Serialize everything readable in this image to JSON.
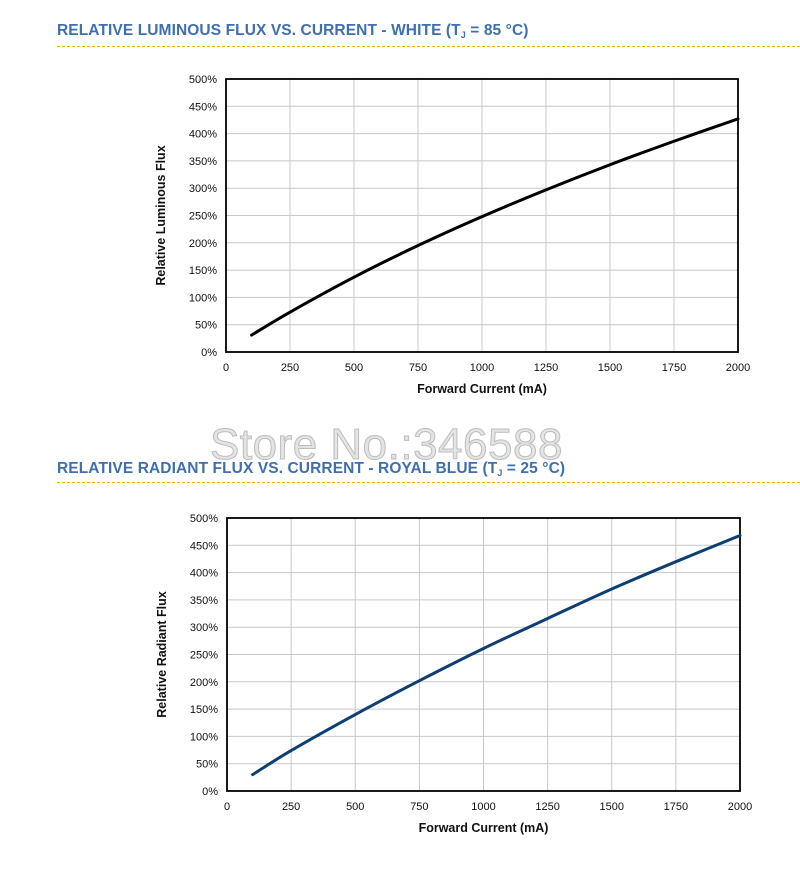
{
  "watermark": "Store No.:346588",
  "chart_data": [
    {
      "type": "line",
      "title_main": "RELATIVE LUMINOUS FLUX VS. CURRENT - WHITE (T",
      "title_sub": "J",
      "title_tail": " = 85 °C)",
      "xlabel": "Forward Current (mA)",
      "ylabel": "Relative Luminous Flux",
      "xlim": [
        0,
        2000
      ],
      "ylim": [
        0,
        500
      ],
      "xticks": [
        0,
        250,
        500,
        750,
        1000,
        1250,
        1500,
        1750,
        2000
      ],
      "xtick_labels": [
        "0",
        "250",
        "500",
        "750",
        "1000",
        "1250",
        "1500",
        "1750",
        "2000"
      ],
      "yticks": [
        0,
        50,
        100,
        150,
        200,
        250,
        300,
        350,
        400,
        450,
        500
      ],
      "ytick_labels": [
        "0%",
        "50%",
        "100%",
        "150%",
        "200%",
        "250%",
        "300%",
        "350%",
        "400%",
        "450%",
        "500%"
      ],
      "grid": true,
      "line_color": "#000000",
      "series": [
        {
          "x": [
            100,
            250,
            500,
            750,
            1000,
            1250,
            1500,
            1750,
            2000
          ],
          "y": [
            31,
            73,
            137,
            195,
            248,
            297,
            343,
            386,
            427
          ]
        }
      ]
    },
    {
      "type": "line",
      "title_main": "RELATIVE RADIANT FLUX VS. CURRENT - ROYAL BLUE (T",
      "title_sub": "J",
      "title_tail": " = 25 °C)",
      "xlabel": "Forward Current (mA)",
      "ylabel": "Relative Radiant Flux",
      "xlim": [
        0,
        2000
      ],
      "ylim": [
        0,
        500
      ],
      "xticks": [
        0,
        250,
        500,
        750,
        1000,
        1250,
        1500,
        1750,
        2000
      ],
      "xtick_labels": [
        "0",
        "250",
        "500",
        "750",
        "1000",
        "1250",
        "1500",
        "1750",
        "2000"
      ],
      "yticks": [
        0,
        50,
        100,
        150,
        200,
        250,
        300,
        350,
        400,
        450,
        500
      ],
      "ytick_labels": [
        "0%",
        "50%",
        "100%",
        "150%",
        "200%",
        "250%",
        "300%",
        "350%",
        "400%",
        "450%",
        "500%"
      ],
      "grid": true,
      "line_color": "#0d3f73",
      "series": [
        {
          "x": [
            100,
            250,
            500,
            750,
            1000,
            1250,
            1500,
            1750,
            2000
          ],
          "y": [
            30,
            74,
            140,
            202,
            261,
            316,
            370,
            420,
            468
          ]
        }
      ]
    }
  ]
}
